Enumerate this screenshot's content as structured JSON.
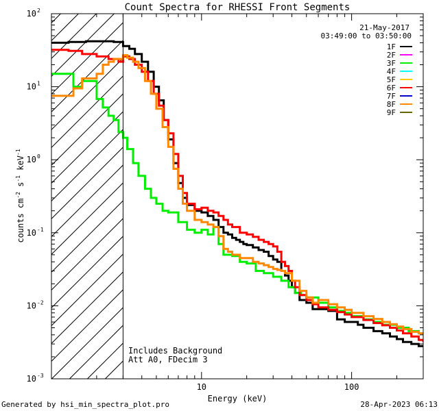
{
  "chart_data": {
    "type": "line",
    "title": "Count Spectra for RHESSI Front Segments",
    "xlabel": "Energy (keV)",
    "ylabel": {
      "base": "counts cm",
      "exp1": "-2",
      "mid": " s",
      "exp2": "-1",
      "mid2": " keV",
      "exp3": "-1"
    },
    "x_scale": "log",
    "y_scale": "log",
    "xlim": [
      1,
      300
    ],
    "ylim": [
      0.001,
      100
    ],
    "x_ticks": [
      {
        "value": 10,
        "label": "10"
      },
      {
        "value": 100,
        "label": "100"
      }
    ],
    "y_ticks": [
      {
        "value": 0.001,
        "base": "10",
        "exp": "-3"
      },
      {
        "value": 0.01,
        "base": "10",
        "exp": "-2"
      },
      {
        "value": 0.1,
        "base": "10",
        "exp": "-1"
      },
      {
        "value": 1,
        "base": "10",
        "exp": "0"
      },
      {
        "value": 10,
        "base": "10",
        "exp": "1"
      },
      {
        "value": 100,
        "base": "10",
        "exp": "2"
      }
    ],
    "date": "21-May-2017",
    "time_range": "03:49:00 to 03:50:00",
    "attenuator_cutoff_keV": 3,
    "annotations": [
      "Includes Background",
      "Att A0, FDecim 3"
    ],
    "legend": [
      {
        "name": "1F",
        "color": "#000000"
      },
      {
        "name": "2F",
        "color": "#ff00ff"
      },
      {
        "name": "3F",
        "color": "#00ee00"
      },
      {
        "name": "4F",
        "color": "#00ffff"
      },
      {
        "name": "5F",
        "color": "#ffcc00"
      },
      {
        "name": "6F",
        "color": "#ff0000"
      },
      {
        "name": "7F",
        "color": "#0000cc"
      },
      {
        "name": "8F",
        "color": "#ff8800"
      },
      {
        "name": "9F",
        "color": "#666600"
      }
    ],
    "series": [
      {
        "name": "1F",
        "color": "#000000",
        "x": [
          1.0,
          1.3,
          1.7,
          2.2,
          2.6,
          3.0,
          3.3,
          3.6,
          4.0,
          4.4,
          4.8,
          5.2,
          5.6,
          6.0,
          6.5,
          7.0,
          7.5,
          8.0,
          9.0,
          10.0,
          11.0,
          12.0,
          13.0,
          14.0,
          15.0,
          16.0,
          17.0,
          18.0,
          19.0,
          20.0,
          22.0,
          24.0,
          26.0,
          28.0,
          30.0,
          32.0,
          34.0,
          36.0,
          38.0,
          40.0,
          42.0,
          45.0,
          50.0,
          55.0,
          60.0,
          70.0,
          80.0,
          90.0,
          100.0,
          110.0,
          120.0,
          140.0,
          160.0,
          180.0,
          200.0,
          220.0,
          250.0,
          280.0,
          300.0
        ],
        "y": [
          40,
          41,
          42,
          42,
          41,
          36,
          33,
          28,
          22,
          16,
          10,
          6.5,
          3.5,
          1.9,
          0.9,
          0.48,
          0.3,
          0.24,
          0.2,
          0.19,
          0.17,
          0.15,
          0.12,
          0.1,
          0.095,
          0.085,
          0.08,
          0.075,
          0.07,
          0.068,
          0.063,
          0.058,
          0.055,
          0.048,
          0.043,
          0.04,
          0.03,
          0.026,
          0.022,
          0.018,
          0.015,
          0.012,
          0.011,
          0.009,
          0.009,
          0.0085,
          0.0065,
          0.006,
          0.006,
          0.0055,
          0.005,
          0.0045,
          0.0042,
          0.0038,
          0.0035,
          0.0032,
          0.003,
          0.0028,
          0.0028
        ]
      },
      {
        "name": "3F",
        "color": "#00ee00",
        "x": [
          1.0,
          1.2,
          1.4,
          1.6,
          1.8,
          2.0,
          2.2,
          2.4,
          2.6,
          2.8,
          3.0,
          3.2,
          3.5,
          3.8,
          4.2,
          4.6,
          5.0,
          5.5,
          6.0,
          7.0,
          8.0,
          9.0,
          10.0,
          11.0,
          12.0,
          13.0,
          14.0,
          16.0,
          18.0,
          20.0,
          23.0,
          26.0,
          30.0,
          34.0,
          38.0,
          42.0,
          46.0,
          50.0,
          60.0,
          70.0,
          80.0,
          90.0,
          100.0,
          120.0,
          140.0,
          160.0,
          200.0,
          240.0,
          280.0,
          300.0
        ],
        "y": [
          15,
          15,
          10,
          12,
          12,
          6.8,
          5.2,
          4.0,
          3.5,
          2.4,
          2.0,
          1.4,
          0.9,
          0.6,
          0.4,
          0.3,
          0.25,
          0.2,
          0.19,
          0.14,
          0.11,
          0.1,
          0.11,
          0.095,
          0.12,
          0.07,
          0.05,
          0.048,
          0.04,
          0.038,
          0.03,
          0.028,
          0.025,
          0.022,
          0.018,
          0.015,
          0.014,
          0.013,
          0.011,
          0.0095,
          0.0085,
          0.008,
          0.0072,
          0.0065,
          0.006,
          0.0055,
          0.005,
          0.0045,
          0.0042,
          0.0042
        ]
      },
      {
        "name": "6F",
        "color": "#ff0000",
        "x": [
          1.0,
          1.3,
          1.6,
          2.0,
          2.4,
          2.8,
          3.0,
          3.3,
          3.6,
          4.0,
          4.4,
          4.8,
          5.2,
          5.6,
          6.0,
          6.5,
          7.0,
          7.5,
          8.0,
          9.0,
          10.0,
          11.0,
          12.0,
          13.0,
          14.0,
          15.0,
          16.0,
          17.0,
          18.0,
          19.0,
          20.0,
          22.0,
          24.0,
          26.0,
          28.0,
          30.0,
          32.0,
          34.0,
          36.0,
          38.0,
          40.0,
          42.0,
          45.0,
          50.0,
          55.0,
          60.0,
          70.0,
          80.0,
          90.0,
          100.0,
          120.0,
          140.0,
          160.0,
          180.0,
          200.0,
          220.0,
          250.0,
          280.0,
          300.0
        ],
        "y": [
          32,
          31,
          28,
          26,
          24,
          22,
          26,
          24,
          20,
          16,
          12,
          8,
          5.5,
          3.5,
          2.3,
          1.2,
          0.6,
          0.35,
          0.25,
          0.21,
          0.22,
          0.2,
          0.19,
          0.17,
          0.15,
          0.13,
          0.12,
          0.12,
          0.1,
          0.1,
          0.095,
          0.088,
          0.08,
          0.075,
          0.07,
          0.065,
          0.055,
          0.04,
          0.035,
          0.03,
          0.022,
          0.018,
          0.014,
          0.012,
          0.0105,
          0.0095,
          0.0088,
          0.0082,
          0.0076,
          0.007,
          0.0064,
          0.0058,
          0.0054,
          0.005,
          0.0046,
          0.0042,
          0.0038,
          0.0034,
          0.0032
        ]
      },
      {
        "name": "8F",
        "color": "#ff8800",
        "x": [
          1.0,
          1.2,
          1.4,
          1.6,
          1.8,
          2.0,
          2.2,
          2.4,
          2.6,
          2.8,
          3.0,
          3.2,
          3.5,
          3.8,
          4.2,
          4.6,
          5.0,
          5.5,
          6.0,
          6.5,
          7.0,
          7.5,
          8.0,
          9.0,
          10.0,
          11.0,
          12.0,
          13.0,
          14.0,
          15.0,
          16.0,
          17.0,
          18.0,
          20.0,
          22.0,
          24.0,
          26.0,
          28.0,
          30.0,
          32.0,
          34.0,
          36.0,
          40.0,
          45.0,
          50.0,
          55.0,
          60.0,
          70.0,
          80.0,
          90.0,
          100.0,
          120.0,
          140.0,
          160.0,
          180.0,
          200.0,
          220.0,
          250.0,
          280.0,
          300.0
        ],
        "y": [
          7.5,
          7.5,
          9.5,
          13,
          13,
          15,
          20,
          22,
          24,
          24,
          27,
          25,
          22,
          18,
          12,
          8,
          5,
          2.8,
          1.5,
          0.75,
          0.4,
          0.25,
          0.2,
          0.15,
          0.14,
          0.13,
          0.12,
          0.09,
          0.06,
          0.055,
          0.05,
          0.05,
          0.045,
          0.045,
          0.04,
          0.038,
          0.036,
          0.034,
          0.032,
          0.031,
          0.03,
          0.028,
          0.022,
          0.016,
          0.013,
          0.011,
          0.012,
          0.0105,
          0.0095,
          0.0088,
          0.008,
          0.0072,
          0.0066,
          0.006,
          0.0056,
          0.0052,
          0.0048,
          0.0044,
          0.0042,
          0.0042
        ]
      }
    ]
  },
  "footer": {
    "generated_by": "Generated by hsi_min_spectra_plot.pro",
    "timestamp": "28-Apr-2023 06:13"
  }
}
